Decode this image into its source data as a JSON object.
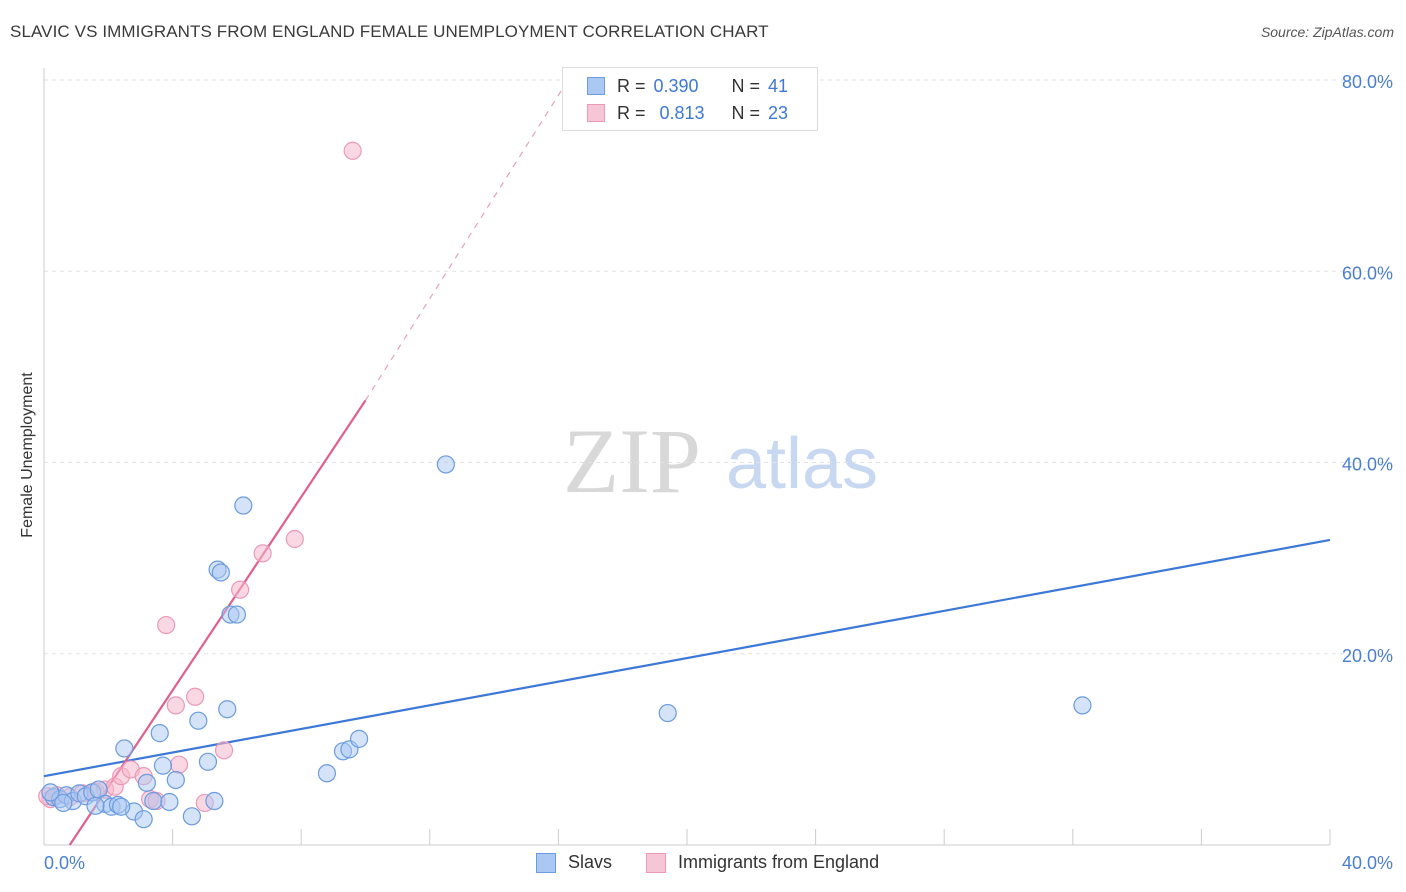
{
  "header": {
    "title": "SLAVIC VS IMMIGRANTS FROM ENGLAND FEMALE UNEMPLOYMENT CORRELATION CHART",
    "source": "Source: ZipAtlas.com"
  },
  "watermark": {
    "zip": "ZIP",
    "atlas": "atlas"
  },
  "legend": {
    "slavs": {
      "r_label": "R =",
      "r_value": "0.390",
      "n_label": "N =",
      "n_value": "41"
    },
    "england": {
      "r_label": "R =",
      "r_value": "0.813",
      "n_label": "N =",
      "n_value": "23"
    }
  },
  "bottom_legend": {
    "slavs": "Slavs",
    "england": "Immigrants from England"
  },
  "colors": {
    "slavs": "#3c78d8",
    "slavs_fill": "#aac8f2",
    "england": "#e0608c",
    "england_fill": "#f6b8cc",
    "axis_text": "#4a7fd0"
  },
  "chart_data": {
    "type": "scatter",
    "title": "SLAVIC VS IMMIGRANTS FROM ENGLAND FEMALE UNEMPLOYMENT CORRELATION CHART",
    "xlabel": "",
    "ylabel": "Female Unemployment",
    "xlim": [
      0,
      40
    ],
    "ylim": [
      0,
      80
    ],
    "x_tick_labels": [
      "0.0%",
      "40.0%"
    ],
    "y_ticks": [
      {
        "value": 80,
        "label": "80.0%"
      },
      {
        "value": 60,
        "label": "60.0%"
      },
      {
        "value": 40,
        "label": "40.0%"
      },
      {
        "value": 20,
        "label": "20.0%"
      }
    ],
    "series": [
      {
        "name": "Slavs",
        "points": [
          [
            0.3,
            5.0
          ],
          [
            0.5,
            4.8
          ],
          [
            0.7,
            5.2
          ],
          [
            0.9,
            4.6
          ],
          [
            1.1,
            5.4
          ],
          [
            1.3,
            5.1
          ],
          [
            1.5,
            5.5
          ],
          [
            1.7,
            5.8
          ],
          [
            1.9,
            4.3
          ],
          [
            2.1,
            4.0
          ],
          [
            2.3,
            4.2
          ],
          [
            2.5,
            10.1
          ],
          [
            2.8,
            3.5
          ],
          [
            3.1,
            2.7
          ],
          [
            3.2,
            6.5
          ],
          [
            3.4,
            4.6
          ],
          [
            3.6,
            11.7
          ],
          [
            3.7,
            8.3
          ],
          [
            3.9,
            4.5
          ],
          [
            4.1,
            6.8
          ],
          [
            4.6,
            3.0
          ],
          [
            4.8,
            13.0
          ],
          [
            5.1,
            8.7
          ],
          [
            5.3,
            4.6
          ],
          [
            5.4,
            28.8
          ],
          [
            5.5,
            28.5
          ],
          [
            5.7,
            14.2
          ],
          [
            5.8,
            24.1
          ],
          [
            6.0,
            24.1
          ],
          [
            6.2,
            35.5
          ],
          [
            8.8,
            7.5
          ],
          [
            9.3,
            9.8
          ],
          [
            9.5,
            10.0
          ],
          [
            9.8,
            11.1
          ],
          [
            12.5,
            39.8
          ],
          [
            19.4,
            13.8
          ],
          [
            32.3,
            14.6
          ],
          [
            0.2,
            5.5
          ],
          [
            0.6,
            4.4
          ],
          [
            1.6,
            4.1
          ],
          [
            2.4,
            4.0
          ]
        ],
        "trend": {
          "x": [
            0,
            40
          ],
          "y": [
            7.2,
            31.9
          ]
        }
      },
      {
        "name": "Immigrants from England",
        "points": [
          [
            0.2,
            4.8
          ],
          [
            0.4,
            5.2
          ],
          [
            0.8,
            5.0
          ],
          [
            1.2,
            5.4
          ],
          [
            1.6,
            5.6
          ],
          [
            1.9,
            5.8
          ],
          [
            2.2,
            6.1
          ],
          [
            2.4,
            7.2
          ],
          [
            2.7,
            7.9
          ],
          [
            3.1,
            7.2
          ],
          [
            3.3,
            4.8
          ],
          [
            3.5,
            4.6
          ],
          [
            3.8,
            23.0
          ],
          [
            4.1,
            14.6
          ],
          [
            4.2,
            8.4
          ],
          [
            4.7,
            15.5
          ],
          [
            5.0,
            4.4
          ],
          [
            5.6,
            9.9
          ],
          [
            6.1,
            26.7
          ],
          [
            6.8,
            30.5
          ],
          [
            7.8,
            32.0
          ],
          [
            9.6,
            72.6
          ],
          [
            0.1,
            5.1
          ]
        ],
        "trend": {
          "x": [
            0.8,
            10.0
          ],
          "y": [
            0,
            46.5
          ],
          "dashed_to": {
            "x": 16.3,
            "y": 80
          }
        }
      }
    ]
  }
}
